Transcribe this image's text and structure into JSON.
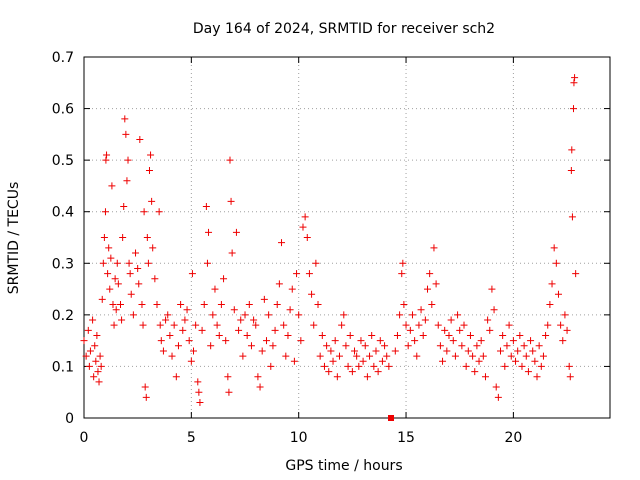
{
  "chart_data": {
    "type": "scatter",
    "title": "Day 164 of 2024, SRMTID for receiver sch2",
    "xlabel": "GPS time / hours",
    "ylabel": "SRMTID / TECUs",
    "xlim": [
      0,
      24.5
    ],
    "ylim": [
      0,
      0.7
    ],
    "xticks": [
      0,
      5,
      10,
      15,
      20
    ],
    "xtick_labels": [
      "0",
      "5",
      "10",
      "15",
      "20"
    ],
    "yticks": [
      0,
      0.1,
      0.2,
      0.3,
      0.4,
      0.5,
      0.6,
      0.7
    ],
    "ytick_labels": [
      "0",
      "0.1",
      "0.2",
      "0.3",
      "0.4",
      "0.5",
      "0.6",
      "0.7"
    ],
    "grid": true,
    "marker": "+",
    "color": "#ee0000",
    "gap_marker": {
      "x": 14.3,
      "y": 0.0
    },
    "series": [
      {
        "name": "SRMTID",
        "points": [
          [
            0.0,
            0.15
          ],
          [
            0.1,
            0.12
          ],
          [
            0.2,
            0.17
          ],
          [
            0.25,
            0.1
          ],
          [
            0.3,
            0.13
          ],
          [
            0.4,
            0.19
          ],
          [
            0.45,
            0.08
          ],
          [
            0.5,
            0.14
          ],
          [
            0.55,
            0.11
          ],
          [
            0.6,
            0.16
          ],
          [
            0.65,
            0.09
          ],
          [
            0.7,
            0.07
          ],
          [
            0.75,
            0.12
          ],
          [
            0.8,
            0.1
          ],
          [
            0.85,
            0.23
          ],
          [
            0.9,
            0.3
          ],
          [
            0.95,
            0.35
          ],
          [
            1.0,
            0.4
          ],
          [
            1.02,
            0.5
          ],
          [
            1.05,
            0.51
          ],
          [
            1.1,
            0.28
          ],
          [
            1.15,
            0.33
          ],
          [
            1.2,
            0.25
          ],
          [
            1.25,
            0.31
          ],
          [
            1.3,
            0.45
          ],
          [
            1.35,
            0.22
          ],
          [
            1.4,
            0.18
          ],
          [
            1.45,
            0.27
          ],
          [
            1.5,
            0.21
          ],
          [
            1.55,
            0.3
          ],
          [
            1.6,
            0.26
          ],
          [
            1.7,
            0.22
          ],
          [
            1.75,
            0.19
          ],
          [
            1.8,
            0.35
          ],
          [
            1.85,
            0.41
          ],
          [
            1.9,
            0.58
          ],
          [
            1.95,
            0.55
          ],
          [
            2.0,
            0.46
          ],
          [
            2.05,
            0.5
          ],
          [
            2.1,
            0.3
          ],
          [
            2.15,
            0.28
          ],
          [
            2.2,
            0.24
          ],
          [
            2.3,
            0.2
          ],
          [
            2.4,
            0.32
          ],
          [
            2.5,
            0.29
          ],
          [
            2.55,
            0.26
          ],
          [
            2.6,
            0.54
          ],
          [
            2.7,
            0.22
          ],
          [
            2.75,
            0.18
          ],
          [
            2.8,
            0.4
          ],
          [
            2.85,
            0.06
          ],
          [
            2.9,
            0.04
          ],
          [
            2.95,
            0.35
          ],
          [
            3.0,
            0.3
          ],
          [
            3.05,
            0.48
          ],
          [
            3.1,
            0.51
          ],
          [
            3.15,
            0.42
          ],
          [
            3.2,
            0.33
          ],
          [
            3.3,
            0.27
          ],
          [
            3.4,
            0.22
          ],
          [
            3.5,
            0.4
          ],
          [
            3.55,
            0.18
          ],
          [
            3.6,
            0.15
          ],
          [
            3.7,
            0.13
          ],
          [
            3.8,
            0.19
          ],
          [
            3.9,
            0.2
          ],
          [
            4.0,
            0.16
          ],
          [
            4.1,
            0.12
          ],
          [
            4.2,
            0.18
          ],
          [
            4.3,
            0.08
          ],
          [
            4.4,
            0.14
          ],
          [
            4.5,
            0.22
          ],
          [
            4.6,
            0.17
          ],
          [
            4.7,
            0.19
          ],
          [
            4.8,
            0.21
          ],
          [
            4.9,
            0.15
          ],
          [
            5.0,
            0.11
          ],
          [
            5.05,
            0.28
          ],
          [
            5.1,
            0.13
          ],
          [
            5.2,
            0.18
          ],
          [
            5.3,
            0.07
          ],
          [
            5.35,
            0.05
          ],
          [
            5.4,
            0.03
          ],
          [
            5.5,
            0.17
          ],
          [
            5.6,
            0.22
          ],
          [
            5.7,
            0.41
          ],
          [
            5.75,
            0.3
          ],
          [
            5.8,
            0.36
          ],
          [
            5.9,
            0.14
          ],
          [
            6.0,
            0.2
          ],
          [
            6.1,
            0.25
          ],
          [
            6.2,
            0.18
          ],
          [
            6.3,
            0.16
          ],
          [
            6.4,
            0.22
          ],
          [
            6.5,
            0.27
          ],
          [
            6.6,
            0.15
          ],
          [
            6.7,
            0.08
          ],
          [
            6.75,
            0.05
          ],
          [
            6.8,
            0.5
          ],
          [
            6.85,
            0.42
          ],
          [
            6.9,
            0.32
          ],
          [
            7.0,
            0.21
          ],
          [
            7.1,
            0.36
          ],
          [
            7.2,
            0.17
          ],
          [
            7.3,
            0.19
          ],
          [
            7.4,
            0.12
          ],
          [
            7.5,
            0.2
          ],
          [
            7.6,
            0.16
          ],
          [
            7.7,
            0.22
          ],
          [
            7.8,
            0.14
          ],
          [
            7.9,
            0.19
          ],
          [
            8.0,
            0.18
          ],
          [
            8.1,
            0.08
          ],
          [
            8.2,
            0.06
          ],
          [
            8.3,
            0.13
          ],
          [
            8.4,
            0.23
          ],
          [
            8.5,
            0.15
          ],
          [
            8.6,
            0.2
          ],
          [
            8.7,
            0.1
          ],
          [
            8.8,
            0.14
          ],
          [
            8.9,
            0.17
          ],
          [
            9.0,
            0.22
          ],
          [
            9.1,
            0.26
          ],
          [
            9.2,
            0.34
          ],
          [
            9.3,
            0.18
          ],
          [
            9.4,
            0.12
          ],
          [
            9.5,
            0.16
          ],
          [
            9.6,
            0.21
          ],
          [
            9.7,
            0.25
          ],
          [
            9.8,
            0.11
          ],
          [
            9.9,
            0.28
          ],
          [
            10.0,
            0.2
          ],
          [
            10.1,
            0.15
          ],
          [
            10.2,
            0.37
          ],
          [
            10.3,
            0.39
          ],
          [
            10.4,
            0.35
          ],
          [
            10.5,
            0.28
          ],
          [
            10.6,
            0.24
          ],
          [
            10.7,
            0.18
          ],
          [
            10.8,
            0.3
          ],
          [
            10.9,
            0.22
          ],
          [
            11.0,
            0.12
          ],
          [
            11.1,
            0.16
          ],
          [
            11.2,
            0.1
          ],
          [
            11.3,
            0.14
          ],
          [
            11.4,
            0.09
          ],
          [
            11.5,
            0.13
          ],
          [
            11.6,
            0.11
          ],
          [
            11.7,
            0.15
          ],
          [
            11.8,
            0.08
          ],
          [
            11.9,
            0.12
          ],
          [
            12.0,
            0.18
          ],
          [
            12.1,
            0.2
          ],
          [
            12.2,
            0.14
          ],
          [
            12.3,
            0.1
          ],
          [
            12.4,
            0.16
          ],
          [
            12.5,
            0.09
          ],
          [
            12.6,
            0.13
          ],
          [
            12.7,
            0.12
          ],
          [
            12.8,
            0.1
          ],
          [
            12.9,
            0.15
          ],
          [
            13.0,
            0.11
          ],
          [
            13.1,
            0.14
          ],
          [
            13.2,
            0.08
          ],
          [
            13.3,
            0.12
          ],
          [
            13.4,
            0.16
          ],
          [
            13.5,
            0.1
          ],
          [
            13.6,
            0.13
          ],
          [
            13.7,
            0.09
          ],
          [
            13.8,
            0.15
          ],
          [
            13.9,
            0.11
          ],
          [
            14.0,
            0.14
          ],
          [
            14.1,
            0.12
          ],
          [
            14.2,
            0.1
          ],
          [
            14.5,
            0.13
          ],
          [
            14.6,
            0.16
          ],
          [
            14.7,
            0.2
          ],
          [
            14.8,
            0.28
          ],
          [
            14.85,
            0.3
          ],
          [
            14.9,
            0.22
          ],
          [
            15.0,
            0.18
          ],
          [
            15.1,
            0.14
          ],
          [
            15.2,
            0.17
          ],
          [
            15.3,
            0.2
          ],
          [
            15.4,
            0.15
          ],
          [
            15.5,
            0.12
          ],
          [
            15.6,
            0.18
          ],
          [
            15.7,
            0.21
          ],
          [
            15.8,
            0.16
          ],
          [
            15.9,
            0.19
          ],
          [
            16.0,
            0.25
          ],
          [
            16.1,
            0.28
          ],
          [
            16.2,
            0.22
          ],
          [
            16.3,
            0.33
          ],
          [
            16.4,
            0.26
          ],
          [
            16.5,
            0.18
          ],
          [
            16.6,
            0.14
          ],
          [
            16.7,
            0.11
          ],
          [
            16.8,
            0.17
          ],
          [
            16.9,
            0.13
          ],
          [
            17.0,
            0.16
          ],
          [
            17.1,
            0.19
          ],
          [
            17.2,
            0.15
          ],
          [
            17.3,
            0.12
          ],
          [
            17.4,
            0.2
          ],
          [
            17.5,
            0.17
          ],
          [
            17.6,
            0.14
          ],
          [
            17.7,
            0.18
          ],
          [
            17.8,
            0.1
          ],
          [
            17.9,
            0.13
          ],
          [
            18.0,
            0.16
          ],
          [
            18.1,
            0.12
          ],
          [
            18.2,
            0.09
          ],
          [
            18.3,
            0.14
          ],
          [
            18.4,
            0.11
          ],
          [
            18.5,
            0.15
          ],
          [
            18.6,
            0.12
          ],
          [
            18.7,
            0.08
          ],
          [
            18.8,
            0.19
          ],
          [
            18.9,
            0.17
          ],
          [
            19.0,
            0.25
          ],
          [
            19.1,
            0.21
          ],
          [
            19.2,
            0.06
          ],
          [
            19.3,
            0.04
          ],
          [
            19.4,
            0.13
          ],
          [
            19.5,
            0.16
          ],
          [
            19.6,
            0.1
          ],
          [
            19.7,
            0.14
          ],
          [
            19.8,
            0.18
          ],
          [
            19.9,
            0.12
          ],
          [
            20.0,
            0.15
          ],
          [
            20.1,
            0.11
          ],
          [
            20.2,
            0.13
          ],
          [
            20.3,
            0.16
          ],
          [
            20.4,
            0.1
          ],
          [
            20.5,
            0.14
          ],
          [
            20.6,
            0.12
          ],
          [
            20.7,
            0.09
          ],
          [
            20.8,
            0.15
          ],
          [
            20.9,
            0.13
          ],
          [
            21.0,
            0.11
          ],
          [
            21.1,
            0.08
          ],
          [
            21.2,
            0.14
          ],
          [
            21.3,
            0.1
          ],
          [
            21.4,
            0.12
          ],
          [
            21.5,
            0.16
          ],
          [
            21.6,
            0.18
          ],
          [
            21.7,
            0.22
          ],
          [
            21.8,
            0.26
          ],
          [
            21.9,
            0.33
          ],
          [
            22.0,
            0.3
          ],
          [
            22.1,
            0.24
          ],
          [
            22.2,
            0.18
          ],
          [
            22.3,
            0.15
          ],
          [
            22.4,
            0.2
          ],
          [
            22.5,
            0.17
          ],
          [
            22.6,
            0.1
          ],
          [
            22.65,
            0.08
          ],
          [
            22.7,
            0.48
          ],
          [
            22.72,
            0.52
          ],
          [
            22.75,
            0.39
          ],
          [
            22.8,
            0.6
          ],
          [
            22.82,
            0.65
          ],
          [
            22.85,
            0.66
          ],
          [
            22.9,
            0.28
          ]
        ]
      }
    ]
  }
}
